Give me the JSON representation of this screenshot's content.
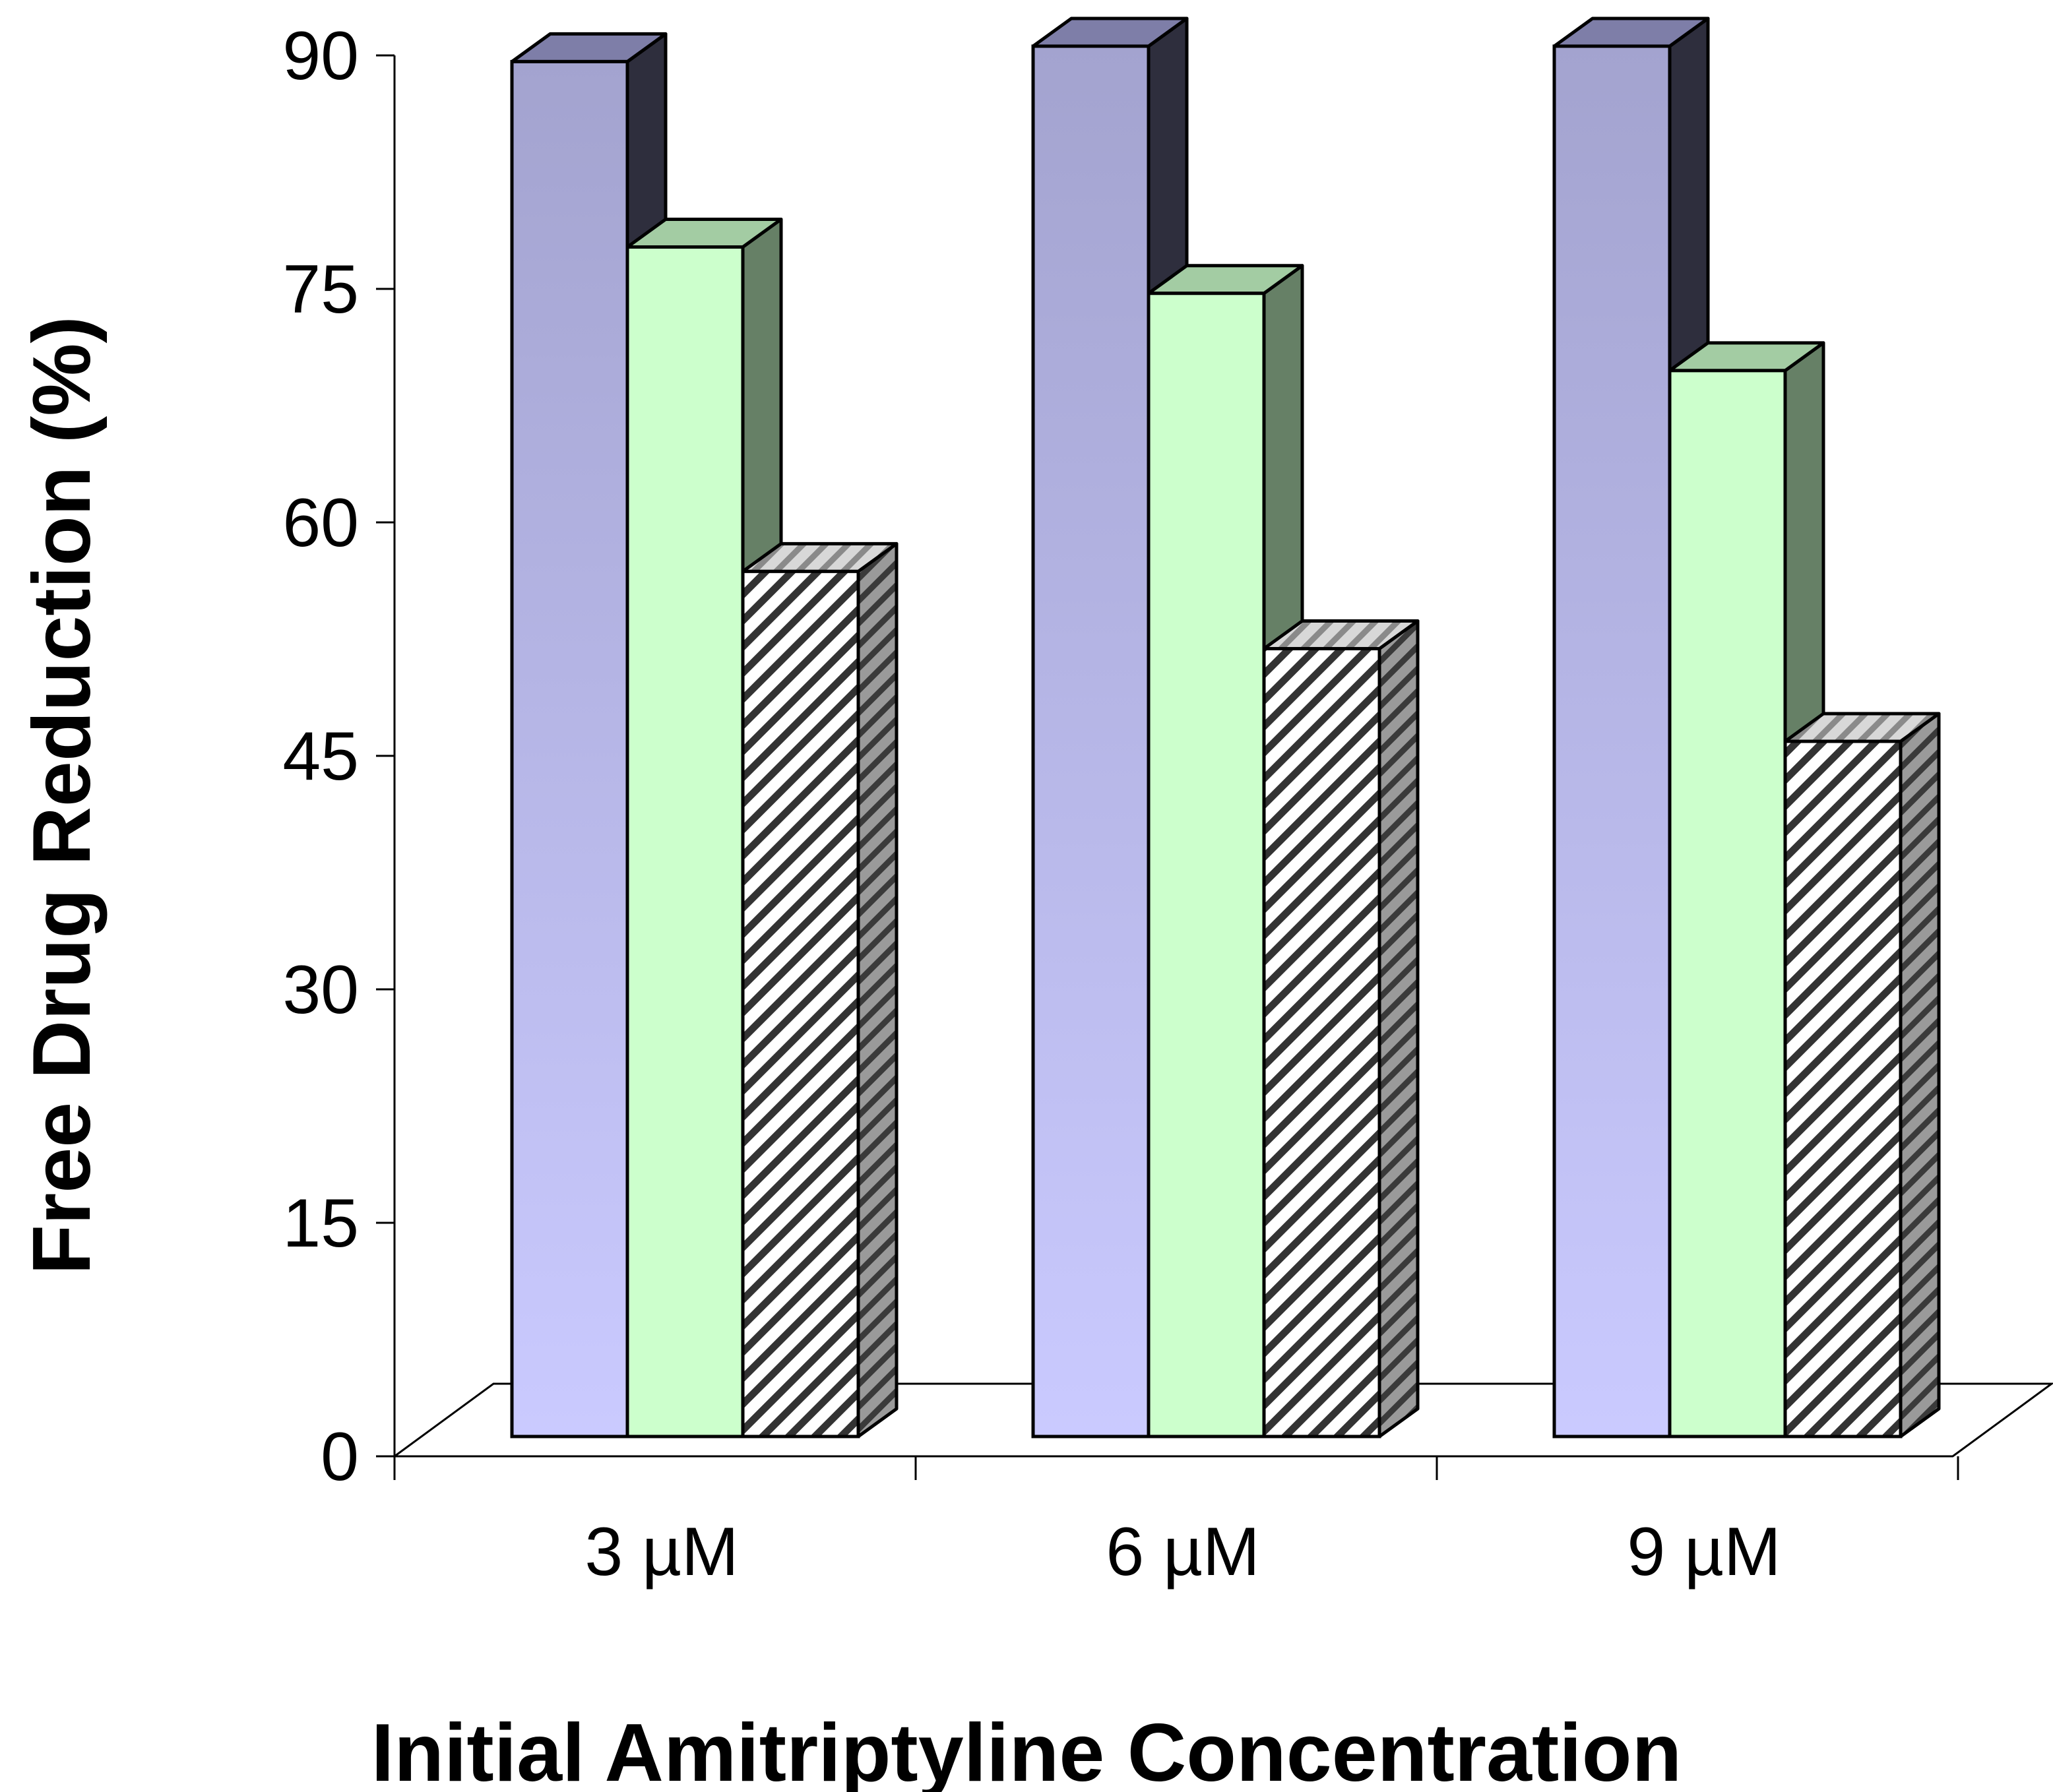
{
  "chart_data": {
    "type": "bar",
    "style": "3d-clustered",
    "title": "",
    "xlabel": "Initial Amitriptyline Concentration",
    "ylabel": "Free Drug Reduction (%)",
    "ylim": [
      0,
      90
    ],
    "yticks": [
      0,
      15,
      30,
      45,
      60,
      75,
      90
    ],
    "grid": false,
    "legend": "none",
    "categories": [
      "3 µM",
      "6 µM",
      "9 µM"
    ],
    "series": [
      {
        "name": "series-1",
        "values": [
          89,
          90,
          90
        ],
        "front_color": "#b4b4e2",
        "side_color": "#2e2e3d",
        "pattern": "gradient"
      },
      {
        "name": "series-2",
        "values": [
          77,
          74,
          69
        ],
        "front_color": "#ccffcc",
        "side_color": "#668066",
        "top_color": "#a3cca3",
        "pattern": "solid"
      },
      {
        "name": "series-3",
        "values": [
          56,
          51,
          45
        ],
        "front_color": "#ffffff",
        "side_color": "#808080",
        "top_color": "#cccccc",
        "pattern": "hatched"
      }
    ]
  }
}
